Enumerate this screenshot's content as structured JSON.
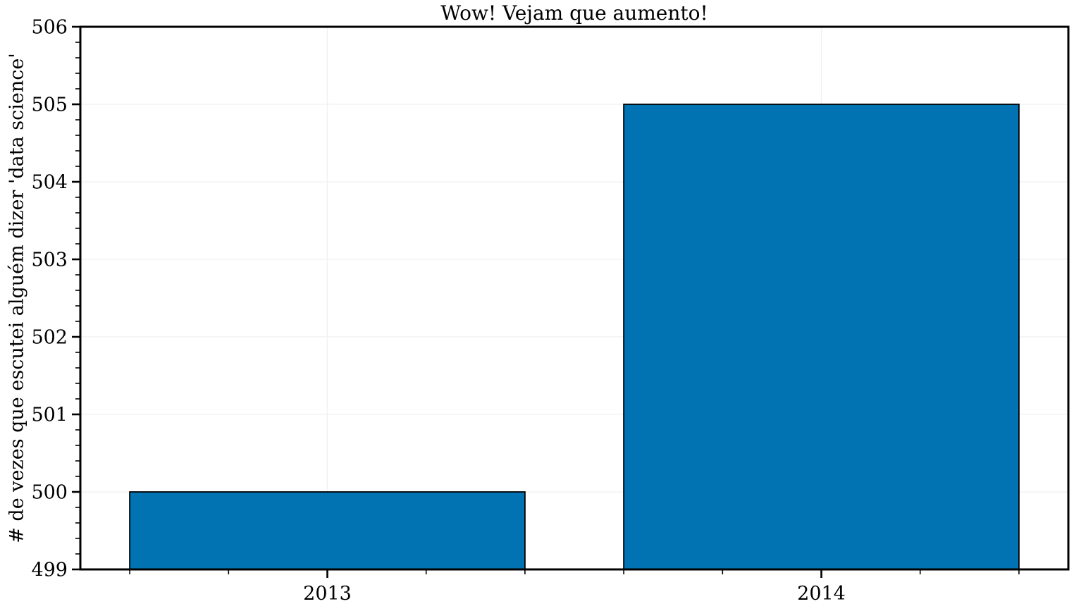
{
  "chart_data": {
    "type": "bar",
    "title": "Wow! Vejam que aumento!",
    "xlabel": "",
    "ylabel": "# de vezes que escutei alguém dizer 'data science'",
    "categories": [
      "2013",
      "2014"
    ],
    "x": [
      2013,
      2014
    ],
    "values": [
      500,
      505
    ],
    "bar_width": 0.8,
    "xlim": [
      2012.5,
      2014.5
    ],
    "ylim": [
      499,
      506
    ],
    "yticks": [
      499,
      500,
      501,
      502,
      503,
      504,
      505,
      506
    ],
    "ytick_labels": [
      "499",
      "500",
      "501",
      "502",
      "503",
      "504",
      "505",
      "506"
    ],
    "xticks": [
      2013,
      2014
    ],
    "minor_tick_step": 0.2,
    "grid": true,
    "legend_position": "none",
    "colors": {
      "bar_fill": "#0173b2",
      "bar_edge": "#000000",
      "grid": "#f0f0f0",
      "axis": "#000000",
      "text": "#000000",
      "background": "#ffffff"
    }
  }
}
